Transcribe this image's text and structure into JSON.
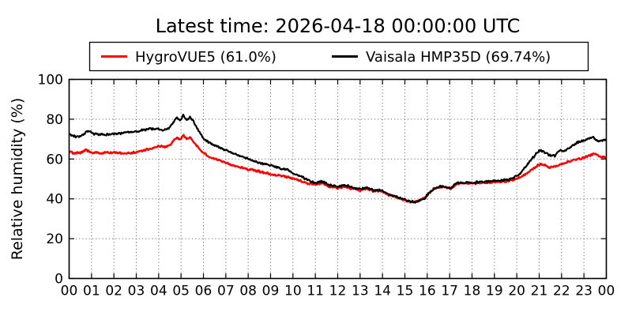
{
  "chart_data": {
    "type": "line",
    "title": "Latest time: 2026-04-18 00:00:00 UTC",
    "xlabel": "",
    "ylabel": "Relative humidity (%)",
    "xlim": [
      0,
      24
    ],
    "ylim": [
      0,
      100
    ],
    "grid": "dotted",
    "legend_position": "top-center",
    "xtick_labels": [
      "00",
      "01",
      "02",
      "03",
      "04",
      "05",
      "06",
      "07",
      "08",
      "09",
      "10",
      "11",
      "12",
      "13",
      "14",
      "15",
      "16",
      "17",
      "18",
      "19",
      "20",
      "21",
      "22",
      "23",
      "00"
    ],
    "ytick_values": [
      0,
      20,
      40,
      60,
      80,
      100
    ],
    "frame_color": "#000000",
    "grid_color": "#444444",
    "noise_amplitude_pct": 0.6,
    "series": [
      {
        "name": "HygroVUE5 (61.0%)",
        "instrument": "HygroVUE5",
        "latest_value_pct": 61.0,
        "color": "#ff0000",
        "line_width": 2.4,
        "points": [
          [
            0,
            63.4
          ],
          [
            0.3,
            63.0
          ],
          [
            0.55,
            63.1
          ],
          [
            0.75,
            64.8
          ],
          [
            0.95,
            63.5
          ],
          [
            1.4,
            62.9
          ],
          [
            2.0,
            63.3
          ],
          [
            2.5,
            62.9
          ],
          [
            3.0,
            63.5
          ],
          [
            3.5,
            64.8
          ],
          [
            4.0,
            66.4
          ],
          [
            4.2,
            66.1
          ],
          [
            4.5,
            66.8
          ],
          [
            4.8,
            71.0
          ],
          [
            4.95,
            69.6
          ],
          [
            5.1,
            72.0
          ],
          [
            5.25,
            69.9
          ],
          [
            5.4,
            71.0
          ],
          [
            5.6,
            68.2
          ],
          [
            5.8,
            65.2
          ],
          [
            6.0,
            63.0
          ],
          [
            6.3,
            61.0
          ],
          [
            6.6,
            59.6
          ],
          [
            7.0,
            58.0
          ],
          [
            7.5,
            56.3
          ],
          [
            8.0,
            54.8
          ],
          [
            8.5,
            53.8
          ],
          [
            9.0,
            52.3
          ],
          [
            9.5,
            51.5
          ],
          [
            9.8,
            51.0
          ],
          [
            10.0,
            50.3
          ],
          [
            10.3,
            49.2
          ],
          [
            10.7,
            47.6
          ],
          [
            11.0,
            47.0
          ],
          [
            11.3,
            48.0
          ],
          [
            11.6,
            46.2
          ],
          [
            12.0,
            45.4
          ],
          [
            12.3,
            46.2
          ],
          [
            12.7,
            45.0
          ],
          [
            13.0,
            44.3
          ],
          [
            13.25,
            45.2
          ],
          [
            13.6,
            43.8
          ],
          [
            13.9,
            44.2
          ],
          [
            14.3,
            41.8
          ],
          [
            14.6,
            40.8
          ],
          [
            15.0,
            39.2
          ],
          [
            15.3,
            38.4
          ],
          [
            15.5,
            38.6
          ],
          [
            15.7,
            39.4
          ],
          [
            15.9,
            40.4
          ],
          [
            16.05,
            42.6
          ],
          [
            16.3,
            45.1
          ],
          [
            16.6,
            46.1
          ],
          [
            16.85,
            45.9
          ],
          [
            17.05,
            45.1
          ],
          [
            17.3,
            47.3
          ],
          [
            17.5,
            47.7
          ],
          [
            18.0,
            47.8
          ],
          [
            18.5,
            48.0
          ],
          [
            19.0,
            48.4
          ],
          [
            19.5,
            48.8
          ],
          [
            19.8,
            49.4
          ],
          [
            20.1,
            50.6
          ],
          [
            20.35,
            52.0
          ],
          [
            20.6,
            54.0
          ],
          [
            20.85,
            56.2
          ],
          [
            21.05,
            57.4
          ],
          [
            21.2,
            57.0
          ],
          [
            21.45,
            55.9
          ],
          [
            21.7,
            56.2
          ],
          [
            21.95,
            57.2
          ],
          [
            22.2,
            58.4
          ],
          [
            22.5,
            59.3
          ],
          [
            22.9,
            60.4
          ],
          [
            23.2,
            61.6
          ],
          [
            23.45,
            62.5
          ],
          [
            23.6,
            62.0
          ],
          [
            23.8,
            61.0
          ],
          [
            24.0,
            61.0
          ]
        ]
      },
      {
        "name": "Vaisala HMP35D (69.74%)",
        "instrument": "Vaisala HMP35D",
        "latest_value_pct": 69.74,
        "color": "#000000",
        "line_width": 2.2,
        "points": [
          [
            0,
            72.3
          ],
          [
            0.3,
            71.2
          ],
          [
            0.55,
            71.6
          ],
          [
            0.85,
            74.2
          ],
          [
            1.1,
            72.6
          ],
          [
            1.5,
            72.2
          ],
          [
            2.0,
            72.5
          ],
          [
            2.5,
            73.2
          ],
          [
            3.0,
            73.8
          ],
          [
            3.5,
            75.0
          ],
          [
            4.0,
            75.2
          ],
          [
            4.2,
            74.4
          ],
          [
            4.5,
            75.8
          ],
          [
            4.8,
            81.0
          ],
          [
            4.95,
            79.3
          ],
          [
            5.1,
            82.0
          ],
          [
            5.25,
            79.6
          ],
          [
            5.4,
            81.2
          ],
          [
            5.6,
            78.0
          ],
          [
            5.8,
            74.0
          ],
          [
            6.0,
            70.4
          ],
          [
            6.3,
            68.0
          ],
          [
            6.6,
            66.2
          ],
          [
            7.0,
            64.5
          ],
          [
            7.5,
            62.0
          ],
          [
            8.0,
            60.0
          ],
          [
            8.5,
            58.2
          ],
          [
            9.0,
            56.8
          ],
          [
            9.5,
            55.0
          ],
          [
            9.8,
            54.5
          ],
          [
            10.0,
            53.0
          ],
          [
            10.3,
            51.5
          ],
          [
            10.7,
            49.3
          ],
          [
            11.0,
            47.8
          ],
          [
            11.3,
            48.8
          ],
          [
            11.6,
            47.0
          ],
          [
            12.0,
            46.0
          ],
          [
            12.3,
            47.0
          ],
          [
            12.7,
            45.5
          ],
          [
            13.0,
            44.8
          ],
          [
            13.25,
            45.8
          ],
          [
            13.6,
            44.2
          ],
          [
            13.9,
            44.6
          ],
          [
            14.3,
            42.2
          ],
          [
            14.6,
            41.2
          ],
          [
            15.0,
            39.5
          ],
          [
            15.3,
            38.6
          ],
          [
            15.5,
            38.4
          ],
          [
            15.7,
            39.3
          ],
          [
            15.9,
            40.3
          ],
          [
            16.05,
            42.8
          ],
          [
            16.3,
            45.3
          ],
          [
            16.6,
            46.3
          ],
          [
            16.85,
            46.0
          ],
          [
            17.05,
            45.3
          ],
          [
            17.3,
            47.9
          ],
          [
            17.5,
            48.2
          ],
          [
            18.0,
            48.2
          ],
          [
            18.5,
            48.5
          ],
          [
            19.0,
            49.0
          ],
          [
            19.5,
            49.4
          ],
          [
            19.8,
            50.1
          ],
          [
            20.1,
            52.0
          ],
          [
            20.35,
            55.5
          ],
          [
            20.6,
            59.0
          ],
          [
            20.85,
            62.5
          ],
          [
            21.05,
            64.4
          ],
          [
            21.2,
            63.8
          ],
          [
            21.45,
            61.9
          ],
          [
            21.7,
            61.6
          ],
          [
            21.95,
            64.6
          ],
          [
            22.1,
            63.9
          ],
          [
            22.3,
            65.5
          ],
          [
            22.7,
            68.3
          ],
          [
            23.0,
            69.5
          ],
          [
            23.2,
            70.0
          ],
          [
            23.4,
            70.8
          ],
          [
            23.6,
            69.0
          ],
          [
            23.8,
            69.3
          ],
          [
            24.0,
            69.74
          ]
        ]
      }
    ]
  }
}
